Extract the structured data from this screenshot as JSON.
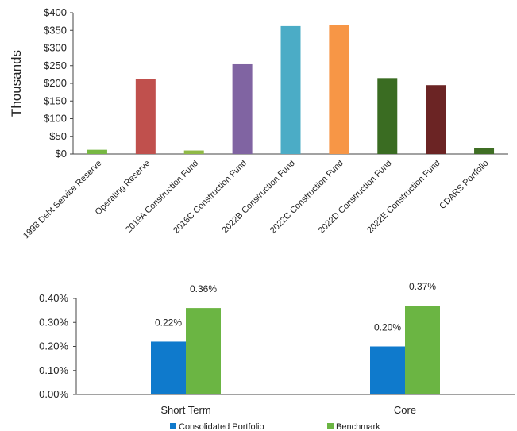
{
  "chart_data": [
    {
      "type": "bar",
      "title": "",
      "xlabel": "",
      "ylabel": "Thousands",
      "ylim": [
        0,
        400
      ],
      "yticks": [
        0,
        50,
        100,
        150,
        200,
        250,
        300,
        350,
        400
      ],
      "ytick_labels": [
        "$0",
        "$50",
        "$100",
        "$150",
        "$200",
        "$250",
        "$300",
        "$350",
        "$400"
      ],
      "grid": false,
      "categories": [
        "1998 Debt Service Reserve",
        "Operating Reserve",
        "2019A Construction Fund",
        "2016C Construction Fund",
        "2022B Construction Fund",
        "2022C Construction Fund",
        "2022D Construction Fund",
        "2022E Construction Fund",
        "CDARS Portfolio"
      ],
      "values": [
        12,
        212,
        10,
        254,
        362,
        365,
        215,
        195,
        17
      ],
      "colors": [
        "#77b843",
        "#c0504d",
        "#8fb946",
        "#8064a2",
        "#4bacc6",
        "#f79646",
        "#3a6c22",
        "#6b2424",
        "#3f6e24"
      ]
    },
    {
      "type": "bar",
      "title": "",
      "xlabel": "",
      "ylabel": "",
      "ylim": [
        0,
        0.4
      ],
      "yticks": [
        0,
        0.1,
        0.2,
        0.3,
        0.4
      ],
      "ytick_labels": [
        "0.00%",
        "0.10%",
        "0.20%",
        "0.30%",
        "0.40%"
      ],
      "grid": false,
      "legend": "bottom",
      "categories": [
        "Short Term",
        "Core"
      ],
      "series": [
        {
          "name": "Consolidated Portfolio",
          "values": [
            0.22,
            0.2
          ],
          "labels": [
            "0.22%",
            "0.20%"
          ],
          "color": "#0f7acc"
        },
        {
          "name": "Benchmark",
          "values": [
            0.36,
            0.37
          ],
          "labels": [
            "0.36%",
            "0.37%"
          ],
          "color": "#6bb543"
        }
      ]
    }
  ]
}
